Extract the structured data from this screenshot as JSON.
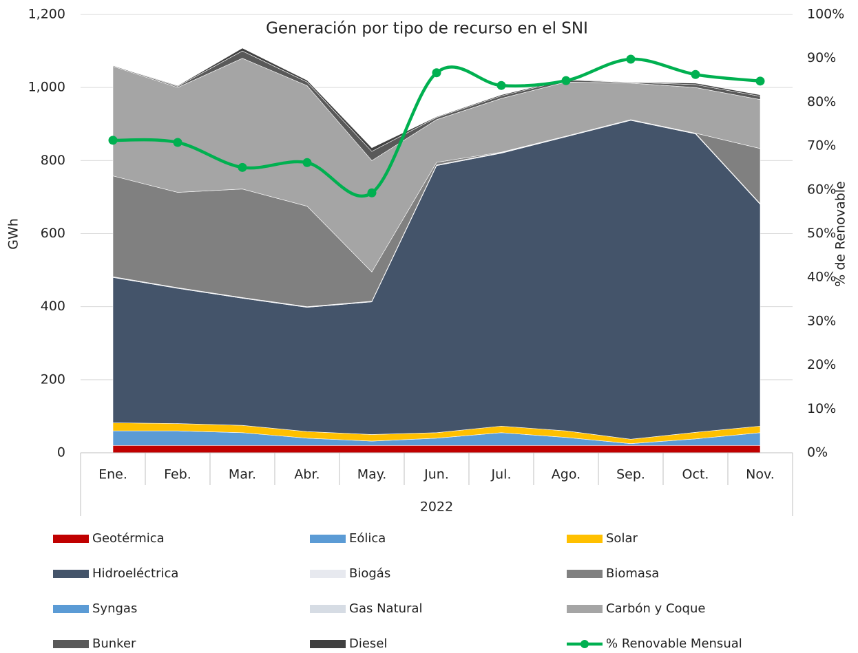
{
  "chart_data": {
    "type": "area",
    "title": "Generación por tipo de recurso en el  SNI",
    "y_label": "GWh",
    "y2_label": "% de Renovable",
    "categories": [
      "Ene.",
      "Feb.",
      "Mar.",
      "Abr.",
      "May.",
      "Jun.",
      "Jul.",
      "Ago.",
      "Sep.",
      "Oct.",
      "Nov."
    ],
    "x_group_label": "2022",
    "stacked": true,
    "grid": true,
    "legend": "bottom",
    "ylim": [
      0,
      1200
    ],
    "yticks": [
      0,
      200,
      400,
      600,
      800,
      {
        "value": 1000,
        "label": "1,000"
      },
      {
        "value": 1200,
        "label": "1,200"
      }
    ],
    "y2lim": [
      0,
      100
    ],
    "y2ticks": [
      {
        "value": 0,
        "label": "0%"
      },
      {
        "value": 10,
        "label": "10%"
      },
      {
        "value": 20,
        "label": "20%"
      },
      {
        "value": 30,
        "label": "30%"
      },
      {
        "value": 40,
        "label": "40%"
      },
      {
        "value": 50,
        "label": "50%"
      },
      {
        "value": 60,
        "label": "60%"
      },
      {
        "value": 70,
        "label": "70%"
      },
      {
        "value": 80,
        "label": "80%"
      },
      {
        "value": 90,
        "label": "90%"
      },
      {
        "value": 100,
        "label": "100%"
      }
    ],
    "series": [
      {
        "name": "Geotérmica",
        "color": "#c00000",
        "values": [
          20,
          20,
          20,
          20,
          20,
          20,
          20,
          20,
          20,
          20,
          20
        ]
      },
      {
        "name": "Eólica",
        "color": "#5b9bd5",
        "values": [
          40,
          40,
          35,
          20,
          12,
          20,
          35,
          22,
          5,
          18,
          35
        ]
      },
      {
        "name": "Solar",
        "color": "#ffc000",
        "values": [
          22,
          20,
          20,
          18,
          18,
          15,
          18,
          18,
          12,
          18,
          18
        ]
      },
      {
        "name": "Hidroeléctrica",
        "color": "#44546a",
        "values": [
          398,
          370,
          348,
          340,
          363,
          731,
          747,
          805,
          873,
          817,
          607
        ]
      },
      {
        "name": "Biogás",
        "color": "#e7e9ef",
        "values": [
          2,
          2,
          2,
          2,
          2,
          2,
          2,
          2,
          2,
          2,
          2
        ]
      },
      {
        "name": "Biomasa",
        "color": "#808080",
        "values": [
          276,
          261,
          297,
          275,
          80,
          7,
          1,
          0,
          0,
          0,
          151
        ]
      },
      {
        "name": "Syngas",
        "color": "#5b9bd5",
        "values": [
          0,
          0,
          0,
          0,
          0,
          0,
          0,
          0,
          0,
          0,
          0
        ]
      },
      {
        "name": "Gas Natural",
        "color": "#d6dce4",
        "values": [
          0,
          0,
          0,
          0,
          0,
          0,
          0,
          0,
          0,
          0,
          0
        ]
      },
      {
        "name": "Carbón y Coque",
        "color": "#a5a5a5",
        "values": [
          300,
          287,
          358,
          330,
          305,
          117,
          147,
          148,
          100,
          125,
          134
        ]
      },
      {
        "name": "Bunker",
        "color": "#595959",
        "values": [
          2,
          3,
          20,
          10,
          25,
          6,
          7,
          5,
          2,
          8,
          9
        ]
      },
      {
        "name": "Diesel",
        "color": "#404040",
        "values": [
          1,
          2,
          8,
          5,
          10,
          2,
          3,
          2,
          1,
          4,
          4
        ]
      },
      {
        "name": "% Renovable Mensual",
        "color": "#00b050",
        "type": "line",
        "axis": "y2",
        "values": [
          71.3,
          70.8,
          65.1,
          66.2,
          59.3,
          86.7,
          83.8,
          84.9,
          89.8,
          86.3,
          84.8
        ]
      }
    ]
  }
}
